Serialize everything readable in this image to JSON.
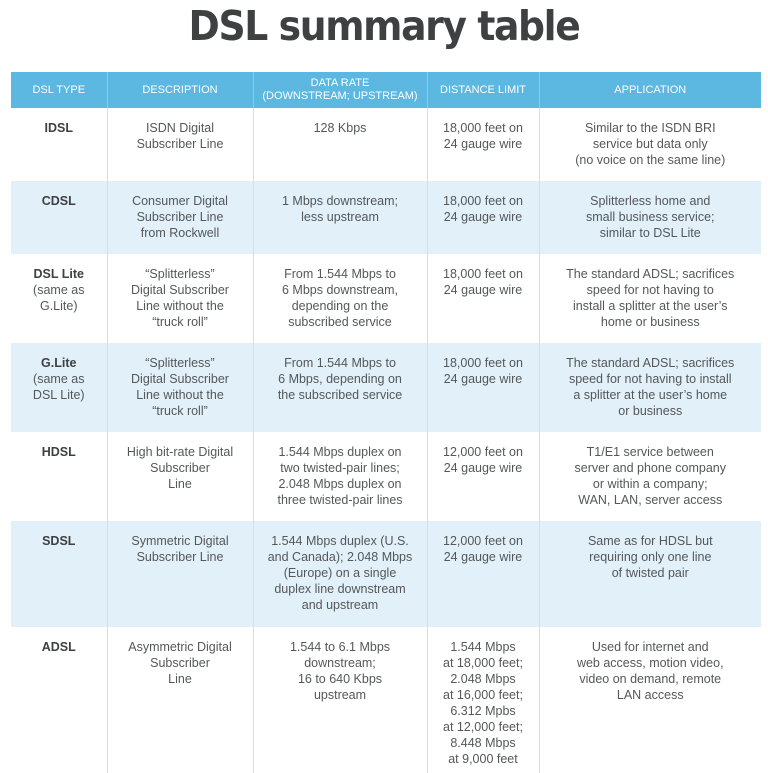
{
  "title": "DSL summary table",
  "colors": {
    "header_bg": "#5cb8e0",
    "header_text": "#ffffff",
    "alt_row_bg": "#e1f0f9",
    "title_text": "#3f4042",
    "body_text": "#555759"
  },
  "table": {
    "headers": [
      [
        "DSL TYPE"
      ],
      [
        "DESCRIPTION"
      ],
      [
        "DATA RATE",
        "(DOWNSTREAM; UPSTREAM)"
      ],
      [
        "DISTANCE LIMIT"
      ],
      [
        "APPLICATION"
      ]
    ],
    "rows": [
      {
        "type": [
          "IDSL"
        ],
        "description": [
          "ISDN Digital",
          "Subscriber Line"
        ],
        "data_rate": [
          "128 Kbps"
        ],
        "distance": [
          "18,000 feet on",
          "24 gauge wire"
        ],
        "application": [
          "Similar to the ISDN BRI",
          "service but data only",
          "(no voice on the same line)"
        ]
      },
      {
        "type": [
          "CDSL"
        ],
        "description": [
          "Consumer Digital",
          "Subscriber Line",
          "from Rockwell"
        ],
        "data_rate": [
          "1 Mbps downstream;",
          "less upstream"
        ],
        "distance": [
          "18,000 feet on",
          "24 gauge wire"
        ],
        "application": [
          "Splitterless home and",
          "small business service;",
          "similar to DSL Lite"
        ]
      },
      {
        "type": [
          "DSL Lite",
          "(same as",
          "G.Lite)"
        ],
        "description": [
          "“Splitterless”",
          "Digital Subscriber",
          "Line without the",
          "“truck roll”"
        ],
        "data_rate": [
          "From 1.544 Mbps to",
          "6 Mbps downstream,",
          "depending on the",
          "subscribed service"
        ],
        "distance": [
          "18,000 feet on",
          "24 gauge wire"
        ],
        "application": [
          "The standard ADSL; sacrifices",
          "speed for not having to",
          "install a splitter at the user’s",
          "home or business"
        ]
      },
      {
        "type": [
          "G.Lite",
          "(same as",
          "DSL Lite)"
        ],
        "description": [
          "“Splitterless”",
          "Digital Subscriber",
          "Line without the",
          "“truck roll”"
        ],
        "data_rate": [
          "From 1.544 Mbps to",
          "6 Mbps, depending on",
          "the subscribed service"
        ],
        "distance": [
          "18,000 feet on",
          "24 gauge wire"
        ],
        "application": [
          "The standard ADSL; sacrifices",
          "speed for not having to install",
          "a splitter at the user’s home",
          "or business"
        ]
      },
      {
        "type": [
          "HDSL"
        ],
        "description": [
          "High bit-rate Digital",
          "Subscriber",
          "Line"
        ],
        "data_rate": [
          "1.544 Mbps duplex on",
          "two twisted-pair lines;",
          "2.048 Mbps duplex on",
          "three twisted-pair lines"
        ],
        "distance": [
          "12,000 feet on",
          "24 gauge wire"
        ],
        "application": [
          "T1/E1 service between",
          "server and phone company",
          "or within a company;",
          "WAN, LAN, server access"
        ]
      },
      {
        "type": [
          "SDSL"
        ],
        "description": [
          "Symmetric Digital",
          "Subscriber Line"
        ],
        "data_rate": [
          "1.544 Mbps duplex (U.S.",
          "and Canada); 2.048 Mbps",
          "(Europe) on a single",
          "duplex line downstream",
          "and upstream"
        ],
        "distance": [
          "12,000 feet on",
          "24 gauge wire"
        ],
        "application": [
          "Same as for HDSL but",
          "requiring only one line",
          "of twisted pair"
        ]
      },
      {
        "type": [
          "ADSL"
        ],
        "description": [
          "Asymmetric Digital",
          "Subscriber",
          "Line"
        ],
        "data_rate": [
          "1.544 to 6.1 Mbps",
          "downstream;",
          "16 to 640 Kbps",
          "upstream"
        ],
        "distance": [
          "1.544 Mbps",
          "at 18,000 feet;",
          "2.048 Mbps",
          "at 16,000 feet;",
          "6.312 Mpbs",
          "at 12,000 feet;",
          "8.448 Mbps",
          "at 9,000 feet"
        ],
        "application": [
          "Used for internet and",
          "web access, motion video,",
          "video on demand, remote",
          "LAN access"
        ]
      }
    ]
  }
}
